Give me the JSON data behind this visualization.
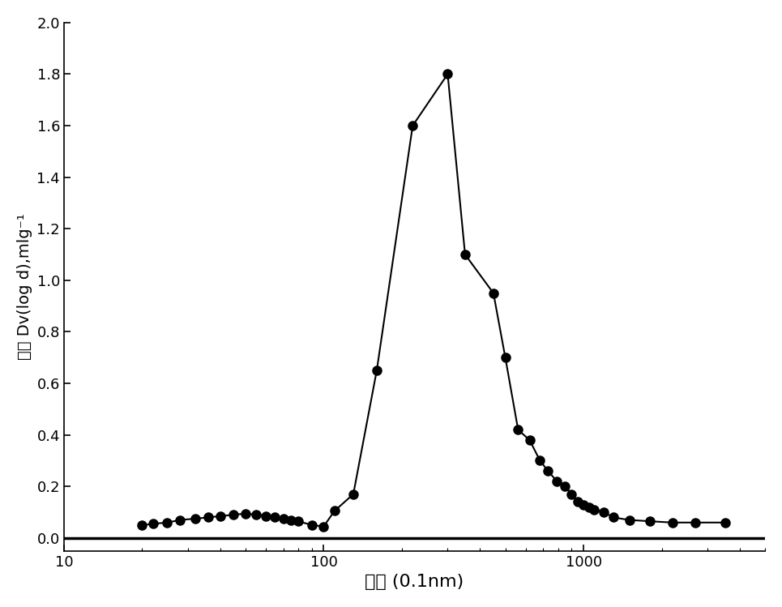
{
  "x": [
    20,
    22,
    25,
    28,
    32,
    36,
    40,
    45,
    50,
    55,
    60,
    65,
    70,
    75,
    80,
    90,
    100,
    110,
    130,
    160,
    220,
    300,
    350,
    450,
    500,
    560,
    620,
    680,
    730,
    790,
    850,
    900,
    950,
    1000,
    1050,
    1100,
    1200,
    1300,
    1500,
    1800,
    2200,
    2700,
    3500
  ],
  "y": [
    0.05,
    0.055,
    0.06,
    0.07,
    0.075,
    0.08,
    0.085,
    0.09,
    0.095,
    0.09,
    0.085,
    0.08,
    0.075,
    0.07,
    0.065,
    0.05,
    0.045,
    0.105,
    0.17,
    0.65,
    1.6,
    1.8,
    1.1,
    0.95,
    0.7,
    0.42,
    0.38,
    0.3,
    0.26,
    0.22,
    0.2,
    0.17,
    0.14,
    0.13,
    0.12,
    0.11,
    0.1,
    0.08,
    0.07,
    0.065,
    0.06,
    0.06,
    0.06
  ],
  "xlabel": "孔径 (0.1nm)",
  "ylabel": "脱附 Dv(log d),mlg⁻¹",
  "xlim": [
    10,
    5000
  ],
  "ylim": [
    -0.05,
    2.0
  ],
  "yticks": [
    0.0,
    0.2,
    0.4,
    0.6,
    0.8,
    1.0,
    1.2,
    1.4,
    1.6,
    1.8,
    2.0
  ],
  "xtick_labels": [
    "10",
    "100",
    "1000"
  ],
  "xtick_positions": [
    10,
    100,
    1000
  ],
  "line_color": "#000000",
  "marker_color": "#000000",
  "background_color": "#ffffff",
  "marker_size": 8,
  "linewidth": 1.5,
  "xlabel_fontsize": 16,
  "ylabel_fontsize": 14,
  "tick_fontsize": 13
}
